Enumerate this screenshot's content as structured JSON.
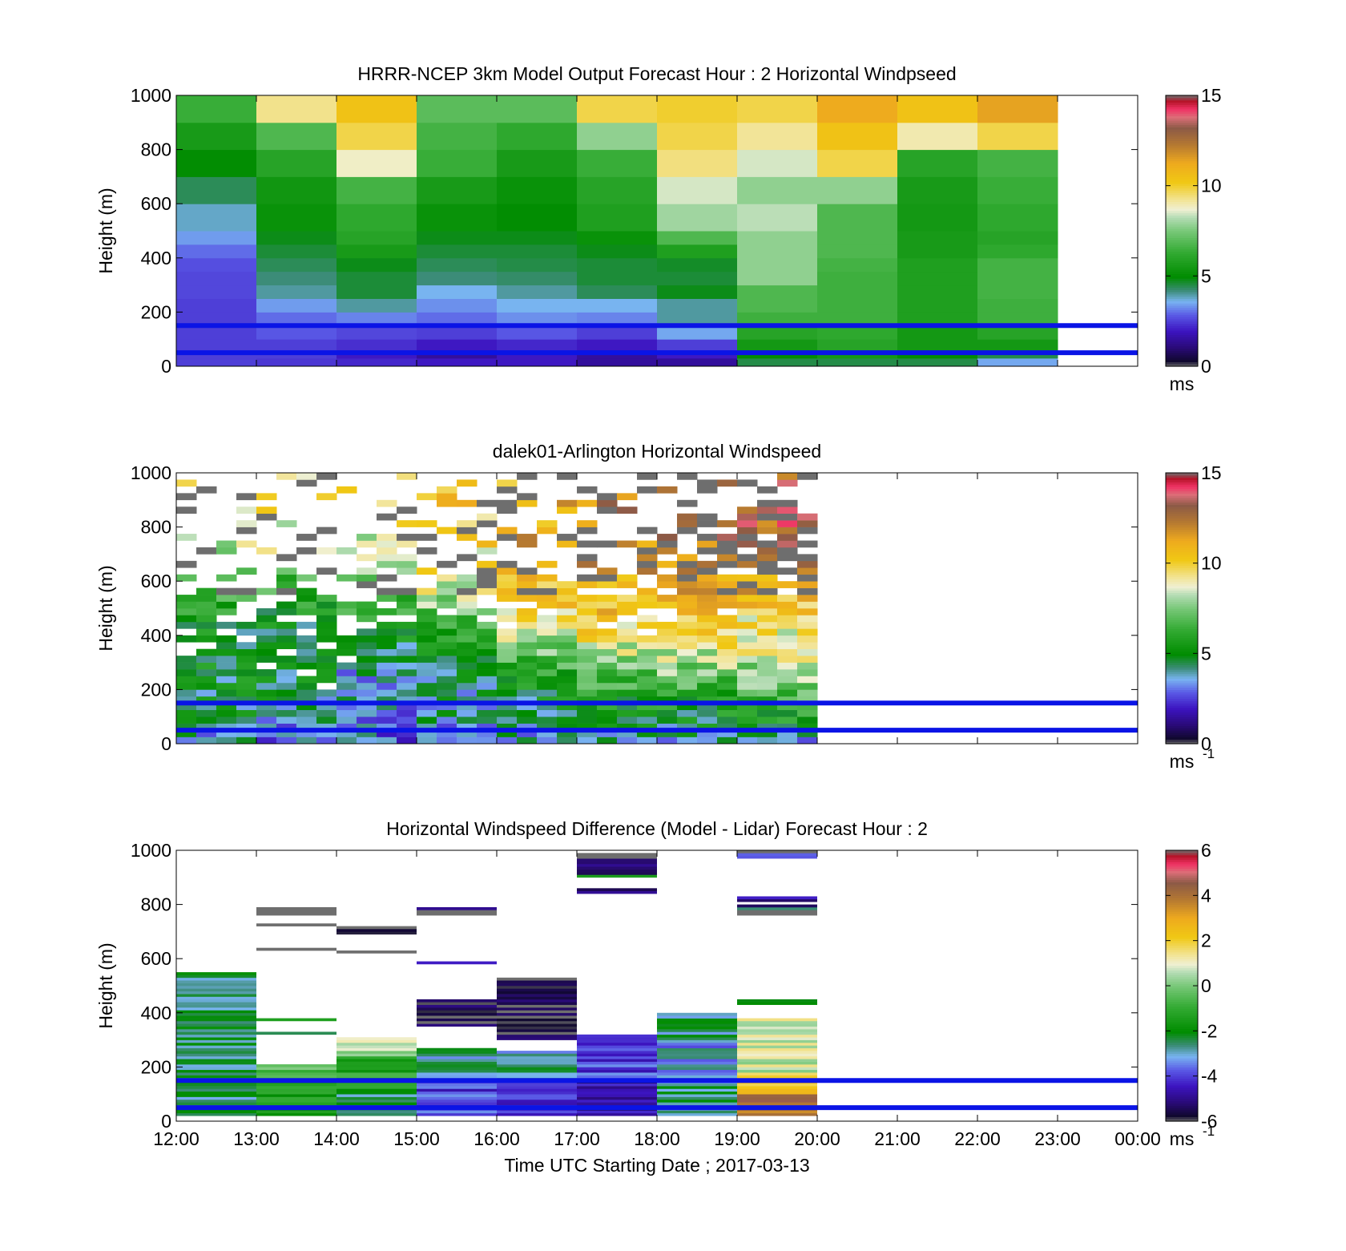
{
  "figure": {
    "xlabel": "Time UTC  Starting Date ; 2017-03-13",
    "x_tick_labels": [
      "12:00",
      "13:00",
      "14:00",
      "15:00",
      "16:00",
      "17:00",
      "18:00",
      "19:00",
      "20:00",
      "21:00",
      "22:00",
      "23:00",
      "00:00"
    ],
    "reference_lines_m": [
      50,
      150
    ],
    "reference_line_color": "#0a14e6"
  },
  "colormaps": {
    "speed": [
      [
        0.0,
        "#6e6e6e"
      ],
      [
        0.02,
        "#10082e"
      ],
      [
        0.07,
        "#2a0a78"
      ],
      [
        0.13,
        "#3c14c0"
      ],
      [
        0.19,
        "#5a5ae6"
      ],
      [
        0.24,
        "#78b4f0"
      ],
      [
        0.28,
        "#3c8c78"
      ],
      [
        0.33,
        "#008c00"
      ],
      [
        0.42,
        "#32aa32"
      ],
      [
        0.5,
        "#78c878"
      ],
      [
        0.55,
        "#b4dcb4"
      ],
      [
        0.58,
        "#f0f0d2"
      ],
      [
        0.62,
        "#f2e28c"
      ],
      [
        0.68,
        "#f0c814"
      ],
      [
        0.75,
        "#eeaa1e"
      ],
      [
        0.82,
        "#b47832"
      ],
      [
        0.88,
        "#8c5a46"
      ],
      [
        0.92,
        "#dc6e78"
      ],
      [
        0.95,
        "#f03264"
      ],
      [
        0.98,
        "#b41428"
      ],
      [
        1.0,
        "#6e6e6e"
      ]
    ]
  },
  "chart_data": [
    {
      "type": "heatmap",
      "id": "model",
      "title": "HRRR-NCEP 3km Model Output   Forecast Hour : 2 Horizontal Windpseed",
      "ylabel": "Height (m)",
      "ylim": [
        0,
        1000
      ],
      "y_ticks": [
        0,
        200,
        400,
        600,
        800,
        1000
      ],
      "xlim_hours": [
        12,
        24
      ],
      "colorbar": {
        "min": 0,
        "max": 15,
        "ticks": [
          0,
          5,
          10,
          15
        ],
        "unit": "ms",
        "unit_sup": ""
      },
      "hours": [
        12,
        13,
        14,
        15,
        16,
        17,
        18,
        19,
        20,
        21,
        22
      ],
      "levels_m": [
        0,
        30,
        60,
        100,
        150,
        200,
        250,
        300,
        350,
        400,
        450,
        500,
        600,
        700,
        800,
        900,
        1000
      ],
      "values": [
        [
          2.5,
          2.4,
          2.2,
          2.0,
          2.0,
          1.5,
          1.5,
          4.5,
          4.5,
          4.5,
          3.5
        ],
        [
          2.5,
          2.5,
          2.0,
          1.5,
          2.0,
          1.5,
          2.0,
          5.0,
          5.5,
          5.0,
          4.5
        ],
        [
          2.5,
          2.5,
          2.3,
          2.0,
          2.2,
          2.0,
          2.5,
          5.5,
          6.0,
          5.5,
          5.5
        ],
        [
          2.5,
          2.8,
          2.6,
          2.5,
          2.8,
          2.5,
          3.5,
          6.0,
          6.2,
          5.5,
          6.0
        ],
        [
          2.5,
          3.0,
          3.2,
          3.0,
          3.3,
          3.2,
          4.0,
          6.5,
          6.5,
          5.8,
          6.5
        ],
        [
          2.5,
          3.4,
          4.0,
          3.3,
          3.6,
          3.6,
          4.0,
          6.8,
          6.5,
          5.8,
          6.5
        ],
        [
          2.6,
          4.0,
          4.6,
          3.6,
          4.0,
          4.4,
          4.8,
          6.8,
          6.5,
          5.8,
          6.6
        ],
        [
          2.6,
          4.2,
          4.6,
          4.2,
          4.3,
          4.6,
          4.6,
          7.8,
          6.5,
          5.8,
          6.6
        ],
        [
          2.7,
          4.4,
          4.8,
          4.4,
          4.5,
          4.6,
          4.7,
          7.8,
          6.6,
          5.8,
          6.6
        ],
        [
          3.0,
          4.6,
          5.6,
          4.6,
          4.6,
          4.8,
          5.8,
          7.8,
          6.8,
          5.6,
          6.2
        ],
        [
          3.4,
          4.8,
          6.0,
          4.8,
          4.8,
          5.2,
          6.8,
          7.8,
          6.8,
          5.6,
          6.0
        ],
        [
          3.8,
          5.2,
          6.2,
          5.2,
          5.0,
          5.8,
          8.0,
          8.3,
          6.8,
          5.5,
          6.2
        ],
        [
          4.4,
          5.4,
          6.6,
          5.6,
          5.2,
          6.0,
          8.5,
          7.8,
          7.8,
          5.6,
          6.4
        ],
        [
          5.0,
          6.0,
          8.8,
          6.4,
          5.6,
          6.4,
          9.4,
          8.5,
          9.8,
          6.0,
          6.6
        ],
        [
          5.6,
          6.8,
          9.8,
          6.6,
          6.2,
          7.8,
          9.8,
          9.2,
          10.4,
          9.0,
          9.8
        ],
        [
          6.4,
          9.3,
          10.4,
          7.0,
          7.0,
          9.8,
          10.0,
          9.8,
          11.2,
          10.4,
          11.4
        ],
        [
          7.8,
          10.0,
          11.0,
          9.4,
          8.8,
          10.0,
          10.4,
          10.2,
          11.6,
          11.0,
          12.0
        ]
      ]
    },
    {
      "type": "heatmap",
      "id": "lidar",
      "title": "dalek01-Arlington  Horizontal Windspeed",
      "ylabel": "Height (m)",
      "ylim": [
        0,
        1000
      ],
      "y_ticks": [
        0,
        200,
        400,
        600,
        800,
        1000
      ],
      "xlim_hours": [
        12,
        24
      ],
      "colorbar": {
        "min": 0,
        "max": 15,
        "ticks": [
          0,
          5,
          10,
          15
        ],
        "unit": "ms",
        "unit_sup": "-1"
      },
      "time_step_h": 0.25,
      "level_step_m": 25,
      "start_hour": 12,
      "end_hour": 20,
      "profile_anchor_heights_m": [
        0,
        100,
        200,
        300,
        400,
        500,
        600,
        700,
        800,
        900,
        1000
      ],
      "profiles": [
        [
          3.5,
          4.6,
          4.8,
          4.9,
          5.0,
          5.6,
          6.8,
          8.0,
          9.0,
          9.0,
          9.0
        ],
        [
          3.0,
          4.0,
          4.6,
          4.8,
          5.0,
          5.4,
          6.6,
          8.5,
          9.0,
          9.0,
          9.0
        ],
        [
          3.0,
          3.6,
          3.6,
          4.2,
          5.2,
          6.0,
          7.5,
          8.5,
          9.0,
          9.0,
          9.0
        ],
        [
          3.2,
          4.0,
          4.4,
          4.8,
          6.0,
          7.4,
          9.0,
          9.5,
          10.0,
          10.0,
          10.0
        ],
        [
          3.5,
          4.5,
          5.0,
          6.6,
          8.5,
          9.8,
          10.2,
          11.0,
          11.0,
          11.0,
          11.0
        ],
        [
          4.0,
          5.0,
          6.0,
          7.6,
          9.4,
          10.5,
          11.0,
          11.5,
          12.0,
          12.0,
          12.0
        ],
        [
          4.0,
          5.0,
          6.2,
          8.0,
          9.6,
          10.8,
          11.5,
          12.0,
          12.5,
          12.5,
          12.5
        ],
        [
          3.0,
          5.6,
          7.0,
          8.2,
          9.0,
          10.0,
          11.5,
          12.0,
          13.0,
          13.0,
          13.0
        ],
        [
          2.5,
          4.5,
          7.0,
          8.5,
          9.5,
          11.0,
          12.0,
          13.0,
          14.0,
          14.5,
          14.5
        ]
      ],
      "coverage_anchor_heights_m": [
        0,
        300,
        500,
        700,
        1000
      ],
      "coverage": [
        [
          1.0,
          0.95,
          0.65,
          0.35,
          0.22
        ],
        [
          1.0,
          0.95,
          0.7,
          0.35,
          0.22
        ],
        [
          1.0,
          0.97,
          0.8,
          0.45,
          0.25
        ],
        [
          1.0,
          1.0,
          0.9,
          0.55,
          0.28
        ],
        [
          1.0,
          1.0,
          0.92,
          0.6,
          0.3
        ],
        [
          1.0,
          1.0,
          0.88,
          0.55,
          0.3
        ],
        [
          1.0,
          1.0,
          0.9,
          0.6,
          0.35
        ],
        [
          1.0,
          1.0,
          0.97,
          0.8,
          0.55
        ],
        [
          1.0,
          1.0,
          1.0,
          1.0,
          1.0
        ]
      ]
    },
    {
      "type": "heatmap",
      "id": "diff",
      "title": "Horizontal Windspeed Difference (Model - Lidar) Forecast Hour : 2",
      "ylabel": "Height (m)",
      "ylim": [
        0,
        1000
      ],
      "y_ticks": [
        0,
        200,
        400,
        600,
        800,
        1000
      ],
      "xlim_hours": [
        12,
        24
      ],
      "colorbar": {
        "min": -6,
        "max": 6,
        "ticks": [
          -6,
          -4,
          -2,
          0,
          2,
          4,
          6
        ],
        "unit": "ms",
        "unit_sup": "-1"
      },
      "band_height_m": 10,
      "columns": [
        {
          "hour": 12,
          "ranges": [
            [
              20,
              550,
              -2.5
            ]
          ]
        },
        {
          "hour": 13,
          "ranges": [
            [
              20,
              150,
              -1.5
            ],
            [
              150,
              210,
              -0.5
            ],
            [
              320,
              330,
              -1.8
            ],
            [
              370,
              380,
              -1.8
            ],
            [
              630,
              640,
              6.0
            ],
            [
              720,
              730,
              6.0
            ],
            [
              760,
              790,
              6.0
            ]
          ]
        },
        {
          "hour": 14,
          "ranges": [
            [
              20,
              120,
              -2.5
            ],
            [
              120,
              240,
              -1.2
            ],
            [
              240,
              310,
              0.5
            ],
            [
              620,
              630,
              6.0
            ],
            [
              690,
              710,
              -5.5
            ],
            [
              710,
              720,
              6.0
            ]
          ]
        },
        {
          "hour": 15,
          "ranges": [
            [
              20,
              150,
              -4.0
            ],
            [
              150,
              270,
              -2.8
            ],
            [
              350,
              450,
              -5.6
            ],
            [
              580,
              590,
              -5.0
            ],
            [
              760,
              780,
              6.0
            ],
            [
              780,
              790,
              -5.5
            ]
          ]
        },
        {
          "hour": 16,
          "ranges": [
            [
              20,
              150,
              -4.0
            ],
            [
              150,
              260,
              -2.8
            ],
            [
              300,
              530,
              -5.8
            ]
          ]
        },
        {
          "hour": 17,
          "ranges": [
            [
              20,
              150,
              -4.8
            ],
            [
              150,
              320,
              -4.0
            ],
            [
              840,
              860,
              -5.0
            ],
            [
              900,
              910,
              -1.8
            ],
            [
              910,
              970,
              -5.2
            ],
            [
              970,
              990,
              6.0
            ]
          ]
        },
        {
          "hour": 18,
          "ranges": [
            [
              20,
              150,
              -2.6
            ],
            [
              150,
              300,
              -3.2
            ],
            [
              300,
              400,
              -2.6
            ]
          ]
        },
        {
          "hour": 19,
          "ranges": [
            [
              20,
              100,
              4.0
            ],
            [
              100,
              180,
              2.0
            ],
            [
              180,
              380,
              0.8
            ],
            [
              430,
              450,
              -2.5
            ],
            [
              760,
              780,
              6.0
            ],
            [
              780,
              790,
              -2.8
            ],
            [
              790,
              800,
              -5.8
            ],
            [
              810,
              830,
              -5.0
            ],
            [
              970,
              990,
              -3.8
            ],
            [
              990,
              1000,
              6.0
            ]
          ]
        }
      ]
    }
  ]
}
